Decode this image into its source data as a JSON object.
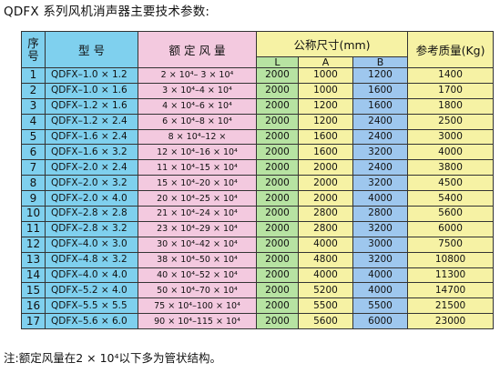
{
  "title": "QDFX 系列风机消声器主要技术参数:",
  "headers": {
    "no": "序号",
    "model": "型  号",
    "air": "额 定 风 量",
    "size": "公称尺寸(mm)",
    "L": "L",
    "A": "A",
    "B": "B",
    "weight": "参考质量(Kg)"
  },
  "rows": [
    {
      "no": "1",
      "model": "QDFX–1.0 × 1.2",
      "air": "2 × 10⁴– 3 × 10⁴",
      "L": "2000",
      "A": "1000",
      "B": "1200",
      "w": "1400"
    },
    {
      "no": "2",
      "model": "QDFX–1.0 × 1.6",
      "air": "3 × 10⁴–4 × 10⁴",
      "L": "2000",
      "A": "1000",
      "B": "1600",
      "w": "1700"
    },
    {
      "no": "3",
      "model": "QDFX–1.2 × 1.6",
      "air": "4 × 10⁴–6 × 10⁴",
      "L": "2000",
      "A": "1200",
      "B": "1600",
      "w": "1800"
    },
    {
      "no": "4",
      "model": "QDFX–1.2 × 2.4",
      "air": "6 × 10⁴–8 × 10⁴",
      "L": "2000",
      "A": "1200",
      "B": "2400",
      "w": "2500"
    },
    {
      "no": "5",
      "model": "QDFX–1.6 × 2.4",
      "air": "8 × 10⁴–12 ×",
      "L": "2000",
      "A": "1600",
      "B": "2400",
      "w": "3000"
    },
    {
      "no": "6",
      "model": "QDFX–1.6 × 3.2",
      "air": "12 × 10⁴–16 × 10⁴",
      "L": "2000",
      "A": "1600",
      "B": "3200",
      "w": "4000"
    },
    {
      "no": "7",
      "model": "QDFX–2.0 × 2.4",
      "air": "11 × 10⁴–15 × 10⁴",
      "L": "2000",
      "A": "2000",
      "B": "2400",
      "w": "3800"
    },
    {
      "no": "8",
      "model": "QDFX–2.0 × 3.2",
      "air": "15 × 10⁴–20 × 10⁴",
      "L": "2000",
      "A": "2000",
      "B": "3200",
      "w": "4500"
    },
    {
      "no": "9",
      "model": "QDFX–2.0 × 4.0",
      "air": "20 × 10⁴–25 × 10⁴",
      "L": "2000",
      "A": "2000",
      "B": "4000",
      "w": "5400"
    },
    {
      "no": "10",
      "model": "QDFX–2.8 × 2.8",
      "air": "21 × 10⁴–24 × 10⁴",
      "L": "2000",
      "A": "2800",
      "B": "2800",
      "w": "5600"
    },
    {
      "no": "11",
      "model": "QDFX–2.8 × 3.2",
      "air": "23 × 10⁴–29 × 10⁴",
      "L": "2000",
      "A": "2800",
      "B": "3200",
      "w": "6000"
    },
    {
      "no": "12",
      "model": "QDFX–4.0 × 3.0",
      "air": "30 × 10⁴–42 × 10⁴",
      "L": "2000",
      "A": "4000",
      "B": "3000",
      "w": "7500"
    },
    {
      "no": "13",
      "model": "QDFX–4.8 × 3.2",
      "air": "38 × 10⁴–50 × 10⁴",
      "L": "2000",
      "A": "4800",
      "B": "3200",
      "w": "10800"
    },
    {
      "no": "14",
      "model": "QDFX–4.0 × 4.0",
      "air": "40 × 10⁴–52 × 10⁴",
      "L": "2000",
      "A": "4000",
      "B": "4000",
      "w": "11300"
    },
    {
      "no": "15",
      "model": "QDFX–5.2 × 4.0",
      "air": "50 × 10⁴–70 × 10⁴",
      "L": "2000",
      "A": "5200",
      "B": "4000",
      "w": "14700"
    },
    {
      "no": "16",
      "model": "QDFX–5.5 × 5.5",
      "air": "75 × 10⁴–100 × 10⁴",
      "L": "2000",
      "A": "5500",
      "B": "5500",
      "w": "21500"
    },
    {
      "no": "17",
      "model": "QDFX–5.6 × 6.0",
      "air": "90 × 10⁴–115 × 10⁴",
      "L": "2000",
      "A": "5600",
      "B": "6000",
      "w": "23000"
    }
  ],
  "note": "注:额定风量在2 × 10⁴以下多为管状结构。",
  "colors": {
    "index_blue": "#7fd0ee",
    "airflow_pink": "#f3c9df",
    "length_green": "#b7e3a2",
    "yellow": "#f6f2a4",
    "b_blue": "#9ec7ee"
  }
}
